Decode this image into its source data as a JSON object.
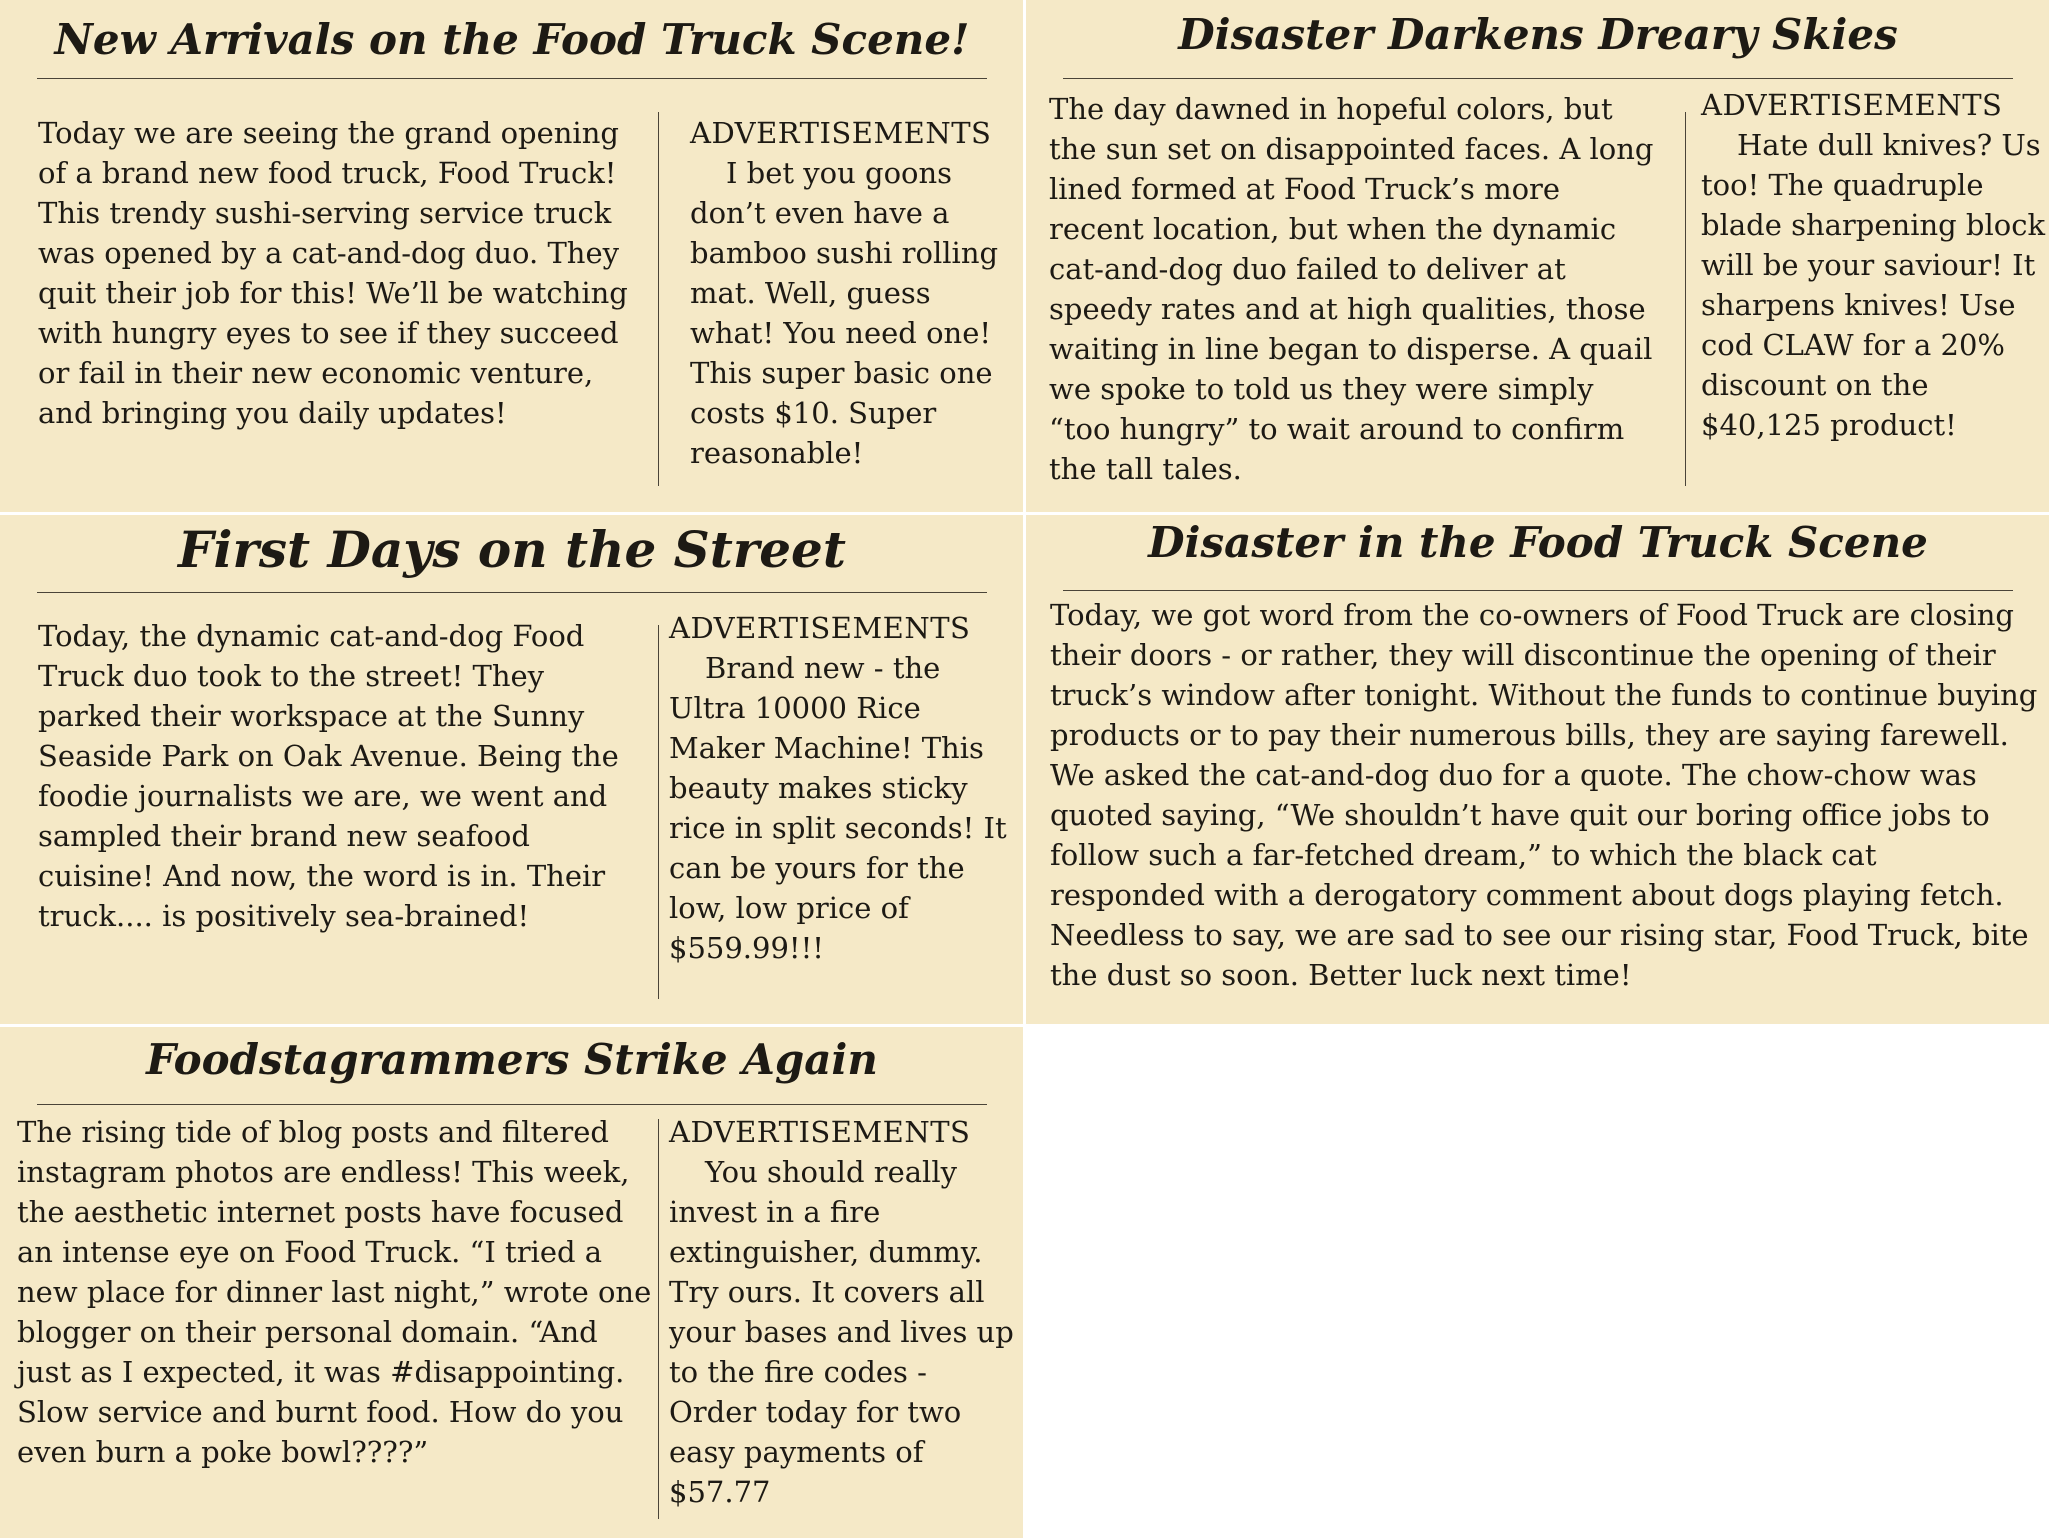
{
  "articles": [
    {
      "headline": "New Arrivals on the Food Truck Scene!",
      "body": "Today we are seeing the grand opening of a brand new food truck, Food Truck! This trendy sushi-serving service truck was opened by a cat-and-dog duo. They quit their job for this! We’ll be watching with hungry eyes to see if they succeed or fail in their new economic venture, and bringing you daily updates!",
      "ad_label": "ADVERTISEMENTS",
      "ad_text": "I bet you goons don’t even have a bamboo sushi rolling mat. Well, guess what! You need one! This super basic one costs $10. Super reasonable!"
    },
    {
      "headline": "Disaster Darkens Dreary Skies",
      "body": "The day dawned in hopeful colors, but the sun set on disappointed faces. A long lined formed at Food Truck’s more recent location, but when the dynamic cat-and-dog duo failed to deliver at speedy rates and at high qualities, those waiting in line began to disperse. A quail we spoke to told us they were simply “too hungry” to wait around to confirm the tall tales.",
      "ad_label": "ADVERTISEMENTS",
      "ad_text": "Hate dull knives? Us too! The quadruple blade sharpening block will be your saviour! It sharpens knives! Use cod CLAW for a 20% discount on the $40,125 product!"
    },
    {
      "headline": "First Days on the Street",
      "body": "Today, the dynamic cat-and-dog Food Truck duo took to the street! They parked their workspace at the Sunny Seaside Park on Oak Avenue. Being the foodie journalists we are, we went and sampled their brand new seafood cuisine! And now, the word is in. Their truck.... is positively sea-brained!",
      "ad_label": "ADVERTISEMENTS",
      "ad_text": "Brand new - the Ultra 10000 Rice Maker Machine! This beauty makes sticky rice in split seconds! It can be yours for the low, low price of $559.99!!!"
    },
    {
      "headline": "Disaster in the Food Truck Scene",
      "body": "Today, we got word from the co-owners of Food Truck are closing their doors - or rather, they will discontinue the opening of their truck’s window after tonight. Without the funds to continue buying products or to pay their numerous bills, they are saying farewell. We asked the cat-and-dog duo for a quote. The chow-chow was quoted saying, “We shouldn’t have quit our boring office jobs to follow such a far-fetched dream,” to which the black cat responded with a derogatory comment about dogs playing fetch. Needless to say, we are sad to see our rising star, Food Truck, bite the dust so soon. Better luck next time!"
    },
    {
      "headline": "Foodstagrammers Strike Again",
      "body": "The rising tide of blog posts and filtered instagram photos are endless! This week, the aesthetic internet posts have focused an intense eye on Food Truck. “I tried a new place for dinner last night,” wrote one blogger on their personal domain. “And just as I expected, it was #disappointing. Slow service and burnt food. How do you even burn a poke bowl????”",
      "ad_label": "ADVERTISEMENTS",
      "ad_text": "You should really invest in a fire extinguisher, dummy. Try ours. It covers all your bases and lives up to the fire codes - Order today for two easy payments of $57.77"
    }
  ]
}
